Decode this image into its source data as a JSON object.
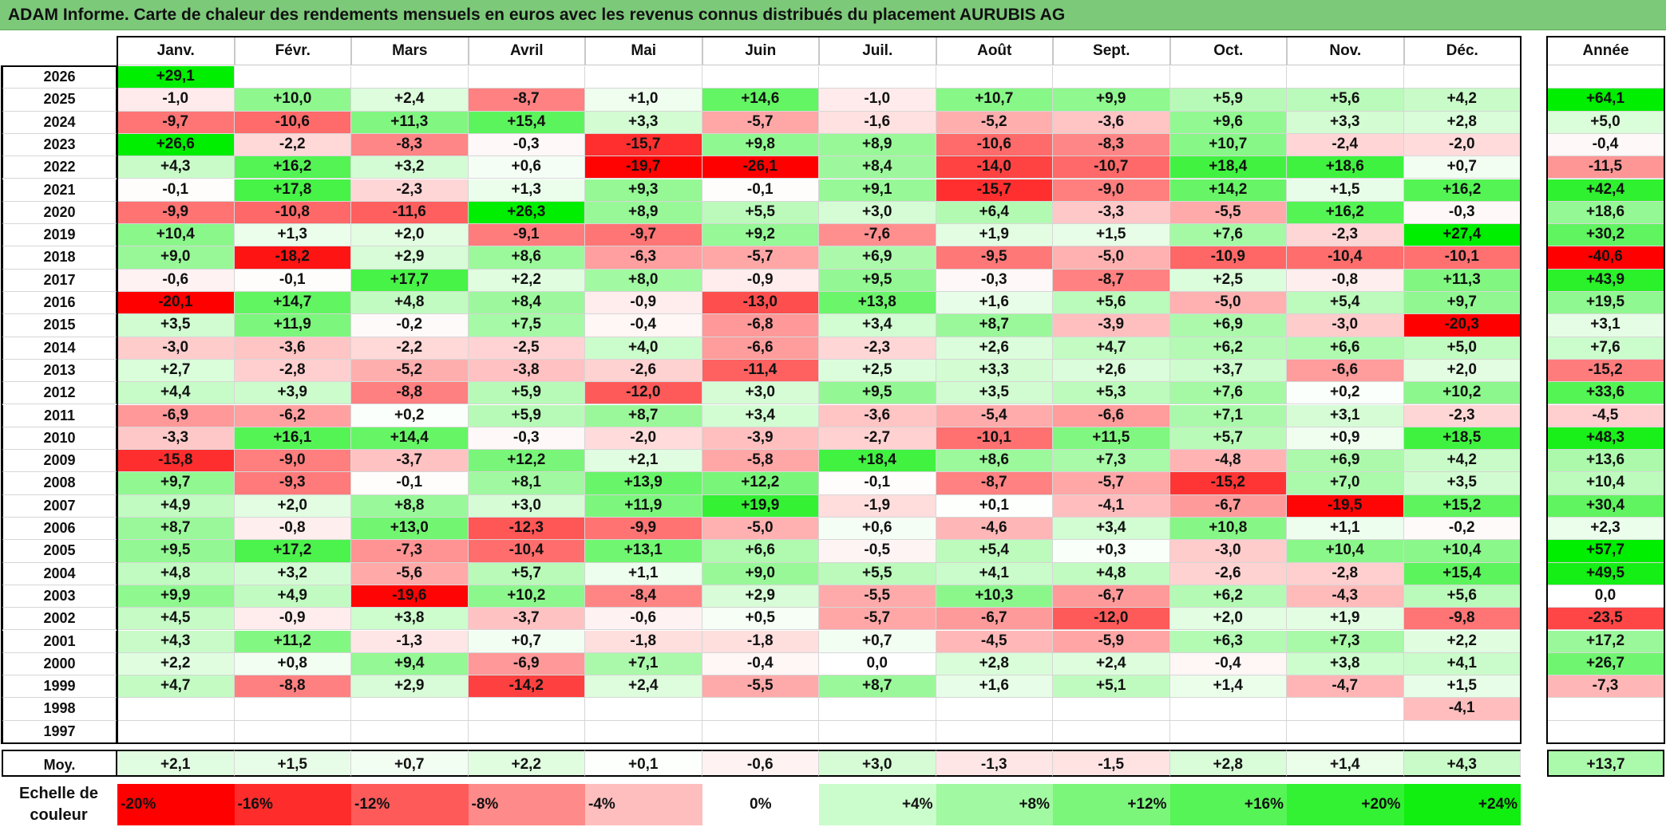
{
  "title": "ADAM Informe. Carte de chaleur des rendements mensuels en euros avec les revenus connus distribués du placement AURUBIS AG",
  "chart_data": {
    "type": "heatmap",
    "title": "ADAM Informe. Carte de chaleur des rendements mensuels en euros avec les revenus connus distribués du placement AURUBIS AG",
    "months": [
      "Janv.",
      "Févr.",
      "Mars",
      "Avril",
      "Mai",
      "Juin",
      "Juil.",
      "Août",
      "Sept.",
      "Oct.",
      "Nov.",
      "Déc."
    ],
    "year_label": "Année",
    "avg_label": "Moy.",
    "rows": [
      {
        "year": "2026",
        "values": [
          29.1,
          null,
          null,
          null,
          null,
          null,
          null,
          null,
          null,
          null,
          null,
          null
        ],
        "annual": null
      },
      {
        "year": "2025",
        "values": [
          -1.0,
          10.0,
          2.4,
          -8.7,
          1.0,
          14.6,
          -1.0,
          10.7,
          9.9,
          5.9,
          5.6,
          4.2
        ],
        "annual": 64.1
      },
      {
        "year": "2024",
        "values": [
          -9.7,
          -10.6,
          11.3,
          15.4,
          3.3,
          -5.7,
          -1.6,
          -5.2,
          -3.6,
          9.6,
          3.3,
          2.8
        ],
        "annual": 5.0
      },
      {
        "year": "2023",
        "values": [
          26.6,
          -2.2,
          -8.3,
          -0.3,
          -15.7,
          9.8,
          8.9,
          -10.6,
          -8.3,
          10.7,
          -2.4,
          -2.0
        ],
        "annual": -0.4
      },
      {
        "year": "2022",
        "values": [
          4.3,
          16.2,
          3.2,
          0.6,
          -19.7,
          -26.1,
          8.4,
          -14.0,
          -10.7,
          18.4,
          18.6,
          0.7
        ],
        "annual": -11.5
      },
      {
        "year": "2021",
        "values": [
          -0.1,
          17.8,
          -2.3,
          1.3,
          9.3,
          -0.1,
          9.1,
          -15.7,
          -9.0,
          14.2,
          1.5,
          16.2
        ],
        "annual": 42.4
      },
      {
        "year": "2020",
        "values": [
          -9.9,
          -10.8,
          -11.6,
          26.3,
          8.9,
          5.5,
          3.0,
          6.4,
          -3.3,
          -5.5,
          16.2,
          -0.3
        ],
        "annual": 18.6
      },
      {
        "year": "2019",
        "values": [
          10.4,
          1.3,
          2.0,
          -9.1,
          -9.7,
          9.2,
          -7.6,
          1.9,
          1.5,
          7.6,
          -2.3,
          27.4
        ],
        "annual": 30.2
      },
      {
        "year": "2018",
        "values": [
          9.0,
          -18.2,
          2.9,
          8.6,
          -6.3,
          -5.7,
          6.9,
          -9.5,
          -5.0,
          -10.9,
          -10.4,
          -10.1
        ],
        "annual": -40.6
      },
      {
        "year": "2017",
        "values": [
          -0.6,
          -0.1,
          17.7,
          2.2,
          8.0,
          -0.9,
          9.5,
          -0.3,
          -8.7,
          2.5,
          -0.8,
          11.3
        ],
        "annual": 43.9
      },
      {
        "year": "2016",
        "values": [
          -20.1,
          14.7,
          4.8,
          8.4,
          -0.9,
          -13.0,
          13.8,
          1.6,
          5.6,
          -5.0,
          5.4,
          9.7
        ],
        "annual": 19.5
      },
      {
        "year": "2015",
        "values": [
          3.5,
          11.9,
          -0.2,
          7.5,
          -0.4,
          -6.8,
          3.4,
          8.7,
          -3.9,
          6.9,
          -3.0,
          -20.3
        ],
        "annual": 3.1
      },
      {
        "year": "2014",
        "values": [
          -3.0,
          -3.6,
          -2.2,
          -2.5,
          4.0,
          -6.6,
          -2.3,
          2.6,
          4.7,
          6.2,
          6.6,
          5.0
        ],
        "annual": 7.6
      },
      {
        "year": "2013",
        "values": [
          2.7,
          -2.8,
          -5.2,
          -3.8,
          -2.6,
          -11.4,
          2.5,
          3.3,
          2.6,
          3.7,
          -6.6,
          2.0
        ],
        "annual": -15.2
      },
      {
        "year": "2012",
        "values": [
          4.4,
          3.9,
          -8.8,
          5.9,
          -12.0,
          3.0,
          9.5,
          3.5,
          5.3,
          7.6,
          0.2,
          10.2
        ],
        "annual": 33.6
      },
      {
        "year": "2011",
        "values": [
          -6.9,
          -6.2,
          0.2,
          5.9,
          8.7,
          3.4,
          -3.6,
          -5.4,
          -6.6,
          7.1,
          3.1,
          -2.3
        ],
        "annual": -4.5
      },
      {
        "year": "2010",
        "values": [
          -3.3,
          16.1,
          14.4,
          -0.3,
          -2.0,
          -3.9,
          -2.7,
          -10.1,
          11.5,
          5.7,
          0.9,
          18.5
        ],
        "annual": 48.3
      },
      {
        "year": "2009",
        "values": [
          -15.8,
          -9.0,
          -3.7,
          12.2,
          2.1,
          -5.8,
          18.4,
          8.6,
          7.3,
          -4.8,
          6.9,
          4.2
        ],
        "annual": 13.6
      },
      {
        "year": "2008",
        "values": [
          9.7,
          -9.3,
          -0.1,
          8.1,
          13.9,
          12.2,
          -0.1,
          -8.7,
          -5.7,
          -15.2,
          7.0,
          3.5
        ],
        "annual": 10.4
      },
      {
        "year": "2007",
        "values": [
          4.9,
          2.0,
          8.8,
          3.0,
          11.9,
          19.9,
          -1.9,
          0.1,
          -4.1,
          -6.7,
          -19.5,
          15.2
        ],
        "annual": 30.4
      },
      {
        "year": "2006",
        "values": [
          8.7,
          -0.8,
          13.0,
          -12.3,
          -9.9,
          -5.0,
          0.6,
          -4.6,
          3.4,
          10.8,
          1.1,
          -0.2
        ],
        "annual": 2.3
      },
      {
        "year": "2005",
        "values": [
          9.5,
          17.2,
          -7.3,
          -10.4,
          13.1,
          6.6,
          -0.5,
          5.4,
          0.3,
          -3.0,
          10.4,
          10.4
        ],
        "annual": 57.7
      },
      {
        "year": "2004",
        "values": [
          4.8,
          3.2,
          -5.6,
          5.7,
          1.1,
          9.0,
          5.5,
          4.1,
          4.8,
          -2.6,
          -2.8,
          15.4
        ],
        "annual": 49.5
      },
      {
        "year": "2003",
        "values": [
          9.9,
          4.9,
          -19.6,
          10.2,
          -8.4,
          2.9,
          -5.5,
          10.3,
          -6.7,
          6.2,
          -4.3,
          5.6
        ],
        "annual": 0.0
      },
      {
        "year": "2002",
        "values": [
          4.5,
          -0.9,
          3.8,
          -3.7,
          -0.6,
          0.5,
          -5.7,
          -6.7,
          -12.0,
          2.0,
          1.9,
          -9.8
        ],
        "annual": -23.5
      },
      {
        "year": "2001",
        "values": [
          4.3,
          11.2,
          -1.3,
          0.7,
          -1.8,
          -1.8,
          0.7,
          -4.5,
          -5.9,
          6.3,
          7.3,
          2.2
        ],
        "annual": 17.2
      },
      {
        "year": "2000",
        "values": [
          2.2,
          0.8,
          9.4,
          -6.9,
          7.1,
          -0.4,
          0.0,
          2.8,
          2.4,
          -0.4,
          3.8,
          4.1
        ],
        "annual": 26.7
      },
      {
        "year": "1999",
        "values": [
          4.7,
          -8.8,
          2.9,
          -14.2,
          2.4,
          -5.5,
          8.7,
          1.6,
          5.1,
          1.4,
          -4.7,
          1.5
        ],
        "annual": -7.3
      },
      {
        "year": "1998",
        "values": [
          null,
          null,
          null,
          null,
          null,
          null,
          null,
          null,
          null,
          null,
          null,
          -4.1
        ],
        "annual": null
      },
      {
        "year": "1997",
        "values": [
          null,
          null,
          null,
          null,
          null,
          null,
          null,
          null,
          null,
          null,
          null,
          null
        ],
        "annual": null
      }
    ],
    "averages": [
      2.1,
      1.5,
      0.7,
      2.2,
      0.1,
      -0.6,
      3.0,
      -1.3,
      -1.5,
      2.8,
      1.4,
      4.3
    ],
    "average_annual": 13.7,
    "color_scale": {
      "label": "Echelle de couleur",
      "steps": [
        {
          "label": "-20%",
          "value": -20
        },
        {
          "label": "-16%",
          "value": -16
        },
        {
          "label": "-12%",
          "value": -12
        },
        {
          "label": "-8%",
          "value": -8
        },
        {
          "label": "-4%",
          "value": -4
        },
        {
          "label": "0%",
          "value": 0
        },
        {
          "label": "+4%",
          "value": 4
        },
        {
          "label": "+8%",
          "value": 8
        },
        {
          "label": "+12%",
          "value": 12
        },
        {
          "label": "+16%",
          "value": 16
        },
        {
          "label": "+20%",
          "value": 20
        },
        {
          "label": "+24%",
          "value": 24
        }
      ]
    },
    "colors": {
      "negative": "#ff0000",
      "neutral": "#ffffff",
      "positive": "#00ee00",
      "title_bg": "#7dc97a"
    }
  }
}
